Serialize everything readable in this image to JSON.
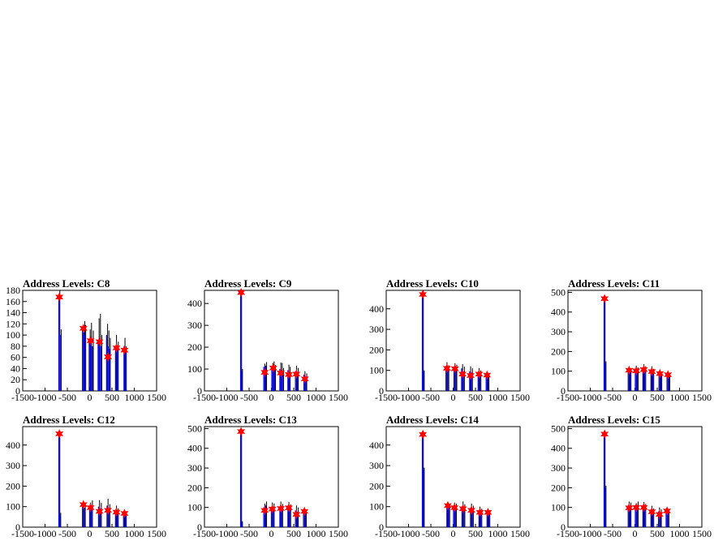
{
  "chart_data": [
    {
      "type": "histogram",
      "title": "Address Levels: C8",
      "xlim": [
        -1500,
        1500
      ],
      "ylim": [
        0,
        180
      ],
      "xticks": [
        "-1500",
        "-1000",
        "-500",
        "0",
        "500",
        "1000",
        "1500"
      ],
      "yticks": [
        "0",
        "20",
        "40",
        "60",
        "80",
        "100",
        "120",
        "140",
        "160",
        "180"
      ],
      "colors": {
        "black": "#000000",
        "blue": "#0000ff",
        "marker": "#ff0000"
      },
      "series": [
        {
          "values": [
            [
              -680,
              168
            ],
            [
              -140,
              112
            ],
            [
              20,
              90
            ],
            [
              220,
              88
            ],
            [
              410,
              61
            ],
            [
              600,
              77
            ],
            [
              780,
              73
            ]
          ]
        }
      ],
      "spikes": [
        [
          -690,
          180,
          168
        ],
        [
          -660,
          110,
          100
        ],
        [
          -160,
          118,
          110
        ],
        [
          -130,
          125,
          105
        ],
        [
          -110,
          118,
          100
        ],
        [
          -10,
          110,
          90
        ],
        [
          20,
          122,
          90
        ],
        [
          60,
          108,
          80
        ],
        [
          190,
          130,
          85
        ],
        [
          220,
          138,
          88
        ],
        [
          250,
          100,
          80
        ],
        [
          380,
          120,
          100
        ],
        [
          410,
          108,
          80
        ],
        [
          440,
          95,
          75
        ],
        [
          580,
          100,
          78
        ],
        [
          620,
          88,
          75
        ],
        [
          770,
          95,
          80
        ],
        [
          800,
          80,
          70
        ]
      ]
    },
    {
      "type": "histogram",
      "title": "Address Levels: C9",
      "xlim": [
        -1500,
        1500
      ],
      "ylim": [
        0,
        460
      ],
      "xticks": [
        "-1500",
        "-1000",
        "-500",
        "0",
        "500",
        "1000",
        "1500"
      ],
      "yticks": [
        "0",
        "100",
        "200",
        "300",
        "400"
      ],
      "colors": {
        "black": "#000000",
        "blue": "#0000ff",
        "marker": "#ff0000"
      },
      "series": [
        {
          "values": [
            [
              -680,
              450
            ],
            [
              -150,
              85
            ],
            [
              40,
              105
            ],
            [
              210,
              82
            ],
            [
              390,
              75
            ],
            [
              560,
              77
            ],
            [
              750,
              55
            ]
          ]
        }
      ],
      "spikes": [
        [
          -690,
          460,
          455
        ],
        [
          -670,
          100,
          90
        ],
        [
          -170,
          125,
          110
        ],
        [
          -130,
          132,
          115
        ],
        [
          10,
          128,
          100
        ],
        [
          40,
          135,
          110
        ],
        [
          70,
          118,
          95
        ],
        [
          190,
          130,
          100
        ],
        [
          220,
          128,
          95
        ],
        [
          250,
          105,
          85
        ],
        [
          370,
          120,
          95
        ],
        [
          400,
          110,
          85
        ],
        [
          540,
          115,
          90
        ],
        [
          580,
          105,
          80
        ],
        [
          730,
          90,
          75
        ],
        [
          770,
          80,
          65
        ]
      ]
    },
    {
      "type": "histogram",
      "title": "Address Levels: C10",
      "xlim": [
        -1500,
        1500
      ],
      "ylim": [
        0,
        490
      ],
      "xticks": [
        "-1500",
        "-1000",
        "-500",
        "0",
        "500",
        "1000",
        "1500"
      ],
      "yticks": [
        "0",
        "100",
        "200",
        "300",
        "400"
      ],
      "colors": {
        "black": "#000000",
        "blue": "#0000ff",
        "marker": "#ff0000"
      },
      "series": [
        {
          "values": [
            [
              -680,
              470
            ],
            [
              -140,
              110
            ],
            [
              40,
              108
            ],
            [
              210,
              82
            ],
            [
              390,
              75
            ],
            [
              580,
              82
            ],
            [
              760,
              77
            ]
          ]
        }
      ],
      "spikes": [
        [
          -690,
          490,
          480
        ],
        [
          -670,
          100,
          95
        ],
        [
          -160,
          140,
          120
        ],
        [
          -120,
          125,
          110
        ],
        [
          20,
          135,
          115
        ],
        [
          60,
          128,
          105
        ],
        [
          190,
          130,
          110
        ],
        [
          230,
          118,
          95
        ],
        [
          370,
          120,
          95
        ],
        [
          410,
          110,
          90
        ],
        [
          560,
          110,
          90
        ],
        [
          600,
          100,
          85
        ],
        [
          740,
          95,
          85
        ],
        [
          780,
          88,
          78
        ]
      ]
    },
    {
      "type": "histogram",
      "title": "Address Levels: C11",
      "xlim": [
        -1500,
        1500
      ],
      "ylim": [
        0,
        510
      ],
      "xticks": [
        "-1500",
        "-1000",
        "-500",
        "0",
        "500",
        "1000",
        "1500"
      ],
      "yticks": [
        "0",
        "100",
        "200",
        "300",
        "400",
        "500"
      ],
      "colors": {
        "black": "#000000",
        "blue": "#0000ff",
        "marker": "#ff0000"
      },
      "series": [
        {
          "values": [
            [
              -680,
              468
            ],
            [
              -130,
              105
            ],
            [
              30,
              102
            ],
            [
              200,
              108
            ],
            [
              380,
              98
            ],
            [
              560,
              88
            ],
            [
              740,
              82
            ]
          ]
        }
      ],
      "spikes": [
        [
          -690,
          480,
          470
        ],
        [
          -670,
          150,
          140
        ],
        [
          -150,
          120,
          105
        ],
        [
          -110,
          110,
          95
        ],
        [
          10,
          128,
          105
        ],
        [
          50,
          118,
          100
        ],
        [
          180,
          135,
          110
        ],
        [
          220,
          125,
          100
        ],
        [
          360,
          125,
          105
        ],
        [
          400,
          112,
          95
        ],
        [
          540,
          108,
          90
        ],
        [
          580,
          98,
          85
        ],
        [
          720,
          95,
          85
        ],
        [
          760,
          90,
          78
        ]
      ]
    },
    {
      "type": "histogram",
      "title": "Address Levels: C12",
      "xlim": [
        -1500,
        1500
      ],
      "ylim": [
        0,
        490
      ],
      "xticks": [
        "-1500",
        "-1000",
        "-500",
        "0",
        "500",
        "1000",
        "1500"
      ],
      "yticks": [
        "0",
        "100",
        "200",
        "300",
        "400"
      ],
      "colors": {
        "black": "#000000",
        "blue": "#0000ff",
        "marker": "#ff0000"
      },
      "series": [
        {
          "values": [
            [
              -680,
              455
            ],
            [
              -140,
              110
            ],
            [
              20,
              95
            ],
            [
              220,
              77
            ],
            [
              410,
              82
            ],
            [
              600,
              73
            ],
            [
              780,
              67
            ]
          ]
        }
      ],
      "spikes": [
        [
          -690,
          470,
          460
        ],
        [
          -670,
          70,
          60
        ],
        [
          -160,
          125,
          110
        ],
        [
          -120,
          110,
          95
        ],
        [
          0,
          120,
          100
        ],
        [
          40,
          130,
          105
        ],
        [
          200,
          132,
          100
        ],
        [
          240,
          118,
          90
        ],
        [
          390,
          138,
          105
        ],
        [
          430,
          112,
          90
        ],
        [
          580,
          105,
          85
        ],
        [
          620,
          92,
          78
        ],
        [
          760,
          85,
          75
        ],
        [
          800,
          78,
          68
        ]
      ]
    },
    {
      "type": "histogram",
      "title": "Address Levels: C13",
      "xlim": [
        -1500,
        1500
      ],
      "ylim": [
        0,
        510
      ],
      "xticks": [
        "-1500",
        "-1000",
        "-500",
        "0",
        "500",
        "1000",
        "1500"
      ],
      "yticks": [
        "0",
        "100",
        "200",
        "300",
        "400",
        "500"
      ],
      "colors": {
        "black": "#000000",
        "blue": "#0000ff",
        "marker": "#ff0000"
      },
      "series": [
        {
          "values": [
            [
              -680,
              485
            ],
            [
              -150,
              85
            ],
            [
              20,
              92
            ],
            [
              210,
              95
            ],
            [
              390,
              98
            ],
            [
              560,
              65
            ],
            [
              740,
              80
            ]
          ]
        }
      ],
      "spikes": [
        [
          -690,
          500,
          490
        ],
        [
          -670,
          30,
          25
        ],
        [
          -170,
          120,
          100
        ],
        [
          -130,
          130,
          110
        ],
        [
          0,
          125,
          100
        ],
        [
          40,
          120,
          95
        ],
        [
          190,
          130,
          100
        ],
        [
          230,
          118,
          95
        ],
        [
          370,
          128,
          105
        ],
        [
          410,
          115,
          95
        ],
        [
          540,
          110,
          85
        ],
        [
          580,
          100,
          78
        ],
        [
          720,
          92,
          80
        ],
        [
          760,
          85,
          75
        ]
      ]
    },
    {
      "type": "histogram",
      "title": "Address Levels: C14",
      "xlim": [
        -1500,
        1500
      ],
      "ylim": [
        0,
        490
      ],
      "xticks": [
        "-1500",
        "-1000",
        "-500",
        "0",
        "500",
        "1000",
        "1500"
      ],
      "yticks": [
        "0",
        "100",
        "200",
        "300",
        "400"
      ],
      "colors": {
        "black": "#000000",
        "blue": "#0000ff",
        "marker": "#ff0000"
      },
      "series": [
        {
          "values": [
            [
              -680,
              452
            ],
            [
              -120,
              105
            ],
            [
              30,
              95
            ],
            [
              220,
              90
            ],
            [
              410,
              82
            ],
            [
              600,
              72
            ],
            [
              780,
              72
            ]
          ]
        }
      ],
      "spikes": [
        [
          -690,
          470,
          460
        ],
        [
          -670,
          290,
          280
        ],
        [
          -140,
          122,
          110
        ],
        [
          -100,
          110,
          95
        ],
        [
          10,
          120,
          100
        ],
        [
          50,
          115,
          95
        ],
        [
          200,
          125,
          100
        ],
        [
          240,
          112,
          90
        ],
        [
          390,
          115,
          95
        ],
        [
          430,
          105,
          85
        ],
        [
          580,
          100,
          80
        ],
        [
          620,
          90,
          75
        ],
        [
          760,
          88,
          78
        ],
        [
          800,
          82,
          72
        ]
      ]
    },
    {
      "type": "histogram",
      "title": "Address Levels: C15",
      "xlim": [
        -1500,
        1500
      ],
      "ylim": [
        0,
        510
      ],
      "xticks": [
        "-1500",
        "-1000",
        "-500",
        "0",
        "500",
        "1000",
        "1500"
      ],
      "yticks": [
        "0",
        "100",
        "200",
        "300",
        "400",
        "500"
      ],
      "colors": {
        "black": "#000000",
        "blue": "#0000ff",
        "marker": "#ff0000"
      },
      "series": [
        {
          "values": [
            [
              -680,
              472
            ],
            [
              -130,
              98
            ],
            [
              30,
              100
            ],
            [
              200,
              100
            ],
            [
              380,
              78
            ],
            [
              550,
              65
            ],
            [
              720,
              82
            ]
          ]
        }
      ],
      "spikes": [
        [
          -690,
          490,
          480
        ],
        [
          -670,
          210,
          200
        ],
        [
          -150,
          130,
          110
        ],
        [
          -110,
          125,
          105
        ],
        [
          10,
          122,
          100
        ],
        [
          50,
          130,
          105
        ],
        [
          180,
          128,
          100
        ],
        [
          220,
          118,
          95
        ],
        [
          360,
          108,
          90
        ],
        [
          400,
          95,
          80
        ],
        [
          530,
          100,
          80
        ],
        [
          570,
          90,
          72
        ],
        [
          700,
          92,
          82
        ],
        [
          740,
          88,
          78
        ]
      ]
    }
  ]
}
